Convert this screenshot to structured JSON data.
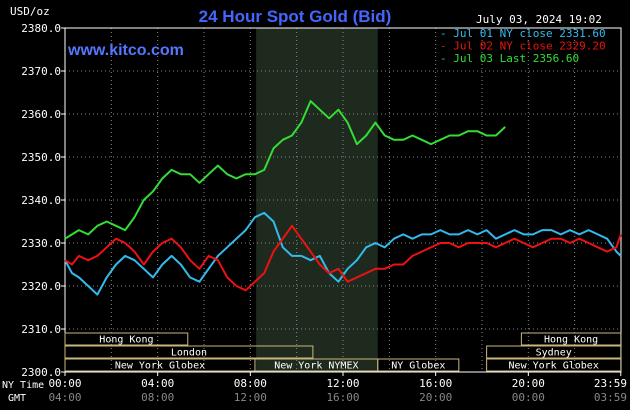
{
  "chart_data": {
    "type": "line",
    "title": "24 Hour Spot Gold (Bid)",
    "source": "www.kitco.com",
    "timestamp": "July 03, 2024 19:02",
    "ylabel": "USD/oz",
    "ylim": [
      2300,
      2380
    ],
    "yticks": [
      "2300.0",
      "2310.0",
      "2320.0",
      "2330.0",
      "2340.0",
      "2350.0",
      "2360.0",
      "2370.0",
      "2380.0"
    ],
    "xlim": [
      0,
      24
    ],
    "xticks_ny": [
      "00:00",
      "04:00",
      "08:00",
      "12:00",
      "16:00",
      "20:00",
      "23:59"
    ],
    "xticks_gmt": [
      "04:00",
      "08:00",
      "12:00",
      "16:00",
      "20:00",
      "00:00",
      "03:59"
    ],
    "row_label_ny": "NY Time",
    "row_label_gmt": "GMT",
    "grid": true,
    "legend_position": "top-right",
    "shaded_region": [
      8.25,
      13.5
    ],
    "colors": {
      "jul01": "#33bbee",
      "jul02": "#ee1111",
      "jul03": "#33dd33",
      "title": "#4466ff",
      "source": "#5577ff",
      "axis": "#ffffff",
      "grid": "#888888",
      "session": "#c8b878"
    },
    "series": [
      {
        "name": "Jul 01 NY close 2331.60",
        "color_key": "jul01",
        "x": [
          0,
          0.3,
          0.6,
          1,
          1.4,
          1.8,
          2.2,
          2.6,
          3,
          3.4,
          3.8,
          4.2,
          4.6,
          5,
          5.4,
          5.8,
          6.2,
          6.6,
          7,
          7.4,
          7.8,
          8.2,
          8.6,
          9,
          9.4,
          9.8,
          10.2,
          10.6,
          11,
          11.4,
          11.8,
          12.2,
          12.6,
          13,
          13.4,
          13.8,
          14.2,
          14.6,
          15,
          15.4,
          15.8,
          16.2,
          16.6,
          17,
          17.4,
          17.8,
          18.2,
          18.6,
          19,
          19.4,
          19.8,
          20.2,
          20.6,
          21,
          21.4,
          21.8,
          22.2,
          22.6,
          23,
          23.4,
          23.8,
          23.99
        ],
        "values": [
          2326,
          2323,
          2322,
          2320,
          2318,
          2322,
          2325,
          2327,
          2326,
          2324,
          2322,
          2325,
          2327,
          2325,
          2322,
          2321,
          2324,
          2327,
          2329,
          2331,
          2333,
          2336,
          2337,
          2335,
          2329,
          2327,
          2327,
          2326,
          2327,
          2323,
          2321,
          2324,
          2326,
          2329,
          2330,
          2329,
          2331,
          2332,
          2331,
          2332,
          2332,
          2333,
          2332,
          2332,
          2333,
          2332,
          2333,
          2331,
          2332,
          2333,
          2332,
          2332,
          2333,
          2333,
          2332,
          2333,
          2332,
          2333,
          2332,
          2331,
          2328,
          2327
        ]
      },
      {
        "name": "Jul 02 NY close 2329.20",
        "color_key": "jul02",
        "x": [
          0,
          0.3,
          0.6,
          1,
          1.4,
          1.8,
          2.2,
          2.6,
          3,
          3.4,
          3.8,
          4.2,
          4.6,
          5,
          5.4,
          5.8,
          6.2,
          6.6,
          7,
          7.4,
          7.8,
          8.2,
          8.6,
          9,
          9.4,
          9.8,
          10.2,
          10.6,
          11,
          11.4,
          11.8,
          12.2,
          12.6,
          13,
          13.4,
          13.8,
          14.2,
          14.6,
          15,
          15.4,
          15.8,
          16.2,
          16.6,
          17,
          17.4,
          17.8,
          18.2,
          18.6,
          19,
          19.4,
          19.8,
          20.2,
          20.6,
          21,
          21.4,
          21.8,
          22.2,
          22.6,
          23,
          23.4,
          23.8,
          23.99
        ],
        "values": [
          2326,
          2325,
          2327,
          2326,
          2327,
          2329,
          2331,
          2330,
          2328,
          2325,
          2328,
          2330,
          2331,
          2329,
          2326,
          2324,
          2327,
          2326,
          2322,
          2320,
          2319,
          2321,
          2323,
          2328,
          2331,
          2334,
          2331,
          2328,
          2325,
          2323,
          2324,
          2321,
          2322,
          2323,
          2324,
          2324,
          2325,
          2325,
          2327,
          2328,
          2329,
          2330,
          2330,
          2329,
          2330,
          2330,
          2330,
          2329,
          2330,
          2331,
          2330,
          2329,
          2330,
          2331,
          2331,
          2330,
          2331,
          2330,
          2329,
          2328,
          2329,
          2332
        ]
      },
      {
        "name": "Jul 03 Last 2356.60",
        "color_key": "jul03",
        "x": [
          0,
          0.3,
          0.6,
          1,
          1.4,
          1.8,
          2.2,
          2.6,
          3,
          3.4,
          3.8,
          4.2,
          4.6,
          5,
          5.4,
          5.8,
          6.2,
          6.6,
          7,
          7.4,
          7.8,
          8.2,
          8.6,
          9,
          9.4,
          9.8,
          10.2,
          10.6,
          11,
          11.4,
          11.8,
          12.2,
          12.6,
          13,
          13.4,
          13.8,
          14.2,
          14.6,
          15,
          15.4,
          15.8,
          16.2,
          16.6,
          17,
          17.4,
          17.8,
          18.2,
          18.6,
          19
        ],
        "values": [
          2331,
          2332,
          2333,
          2332,
          2334,
          2335,
          2334,
          2333,
          2336,
          2340,
          2342,
          2345,
          2347,
          2346,
          2346,
          2344,
          2346,
          2348,
          2346,
          2345,
          2346,
          2346,
          2347,
          2352,
          2354,
          2355,
          2358,
          2363,
          2361,
          2359,
          2361,
          2358,
          2353,
          2355,
          2358,
          2355,
          2354,
          2354,
          2355,
          2354,
          2353,
          2354,
          2355,
          2355,
          2356,
          2356,
          2355,
          2355,
          2357
        ]
      }
    ],
    "sessions": [
      {
        "label": "Hong Kong",
        "row": 0,
        "start": 0,
        "end": 5.3
      },
      {
        "label": "Hong Kong",
        "row": 0,
        "start": 19.7,
        "end": 23.99
      },
      {
        "label": "London",
        "row": 1,
        "start": 0,
        "end": 10.7
      },
      {
        "label": "Sydney",
        "row": 1,
        "start": 18.2,
        "end": 23.99
      },
      {
        "label": "New York Globex",
        "row": 2,
        "start": 0,
        "end": 8.2
      },
      {
        "label": "New York NYMEX",
        "row": 2,
        "start": 8.2,
        "end": 13.5
      },
      {
        "label": "NY Globex",
        "row": 2,
        "start": 13.5,
        "end": 17
      },
      {
        "label": "New York Globex",
        "row": 2,
        "start": 18.2,
        "end": 23.99
      }
    ]
  }
}
